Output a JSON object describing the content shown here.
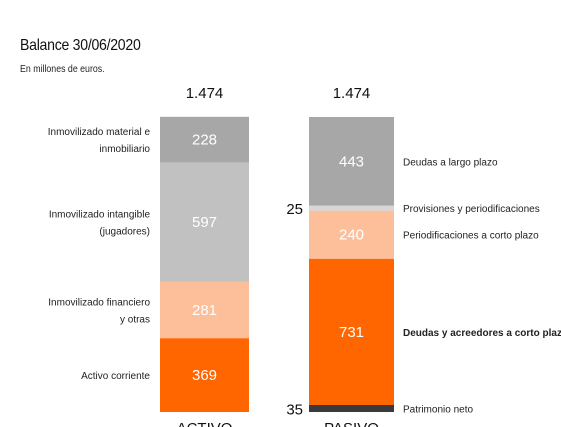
{
  "title": "Balance 30/06/2020",
  "subtitle": "En millones de euros.",
  "chart_data": {
    "type": "bar",
    "stacked": true,
    "categories": [
      "ACTIVO",
      "PASIVO"
    ],
    "totals": [
      "1.474",
      "1.474"
    ],
    "stacks": [
      {
        "category": "ACTIVO",
        "total": 1474,
        "segments": [
          {
            "label": [
              "Activo corriente"
            ],
            "value": 369,
            "display": "369",
            "color": "#ff6600"
          },
          {
            "label": [
              "Inmovilizado financiero",
              "y otras"
            ],
            "value": 281,
            "display": "281",
            "color": "#fcbf9a"
          },
          {
            "label": [
              "Inmovilizado intangible",
              "(jugadores)"
            ],
            "value": 597,
            "display": "597",
            "color": "#c1c1c1"
          },
          {
            "label": [
              "Inmovilizado material e",
              "inmobiliario"
            ],
            "value": 228,
            "display": "228",
            "color": "#a7a7a7"
          }
        ]
      },
      {
        "category": "PASIVO",
        "total": 1474,
        "segments": [
          {
            "label": [
              "Patrimonio neto"
            ],
            "value": 35,
            "display": "35",
            "color": "#3a3a3a",
            "outside": true
          },
          {
            "label": [
              "Deudas y acreedores a corto plazo"
            ],
            "value": 731,
            "display": "731",
            "color": "#ff6600",
            "bold": true
          },
          {
            "label": [
              "Periodificaciones a corto plazo"
            ],
            "value": 240,
            "display": "240",
            "color": "#fcbf9a"
          },
          {
            "label": [
              "Provisiones y periodificaciones"
            ],
            "value": 25,
            "display": "25",
            "color": "#d6d6d6",
            "outside": true
          },
          {
            "label": [
              "Deudas a largo plazo"
            ],
            "value": 443,
            "display": "443",
            "color": "#a7a7a7"
          }
        ]
      }
    ]
  }
}
